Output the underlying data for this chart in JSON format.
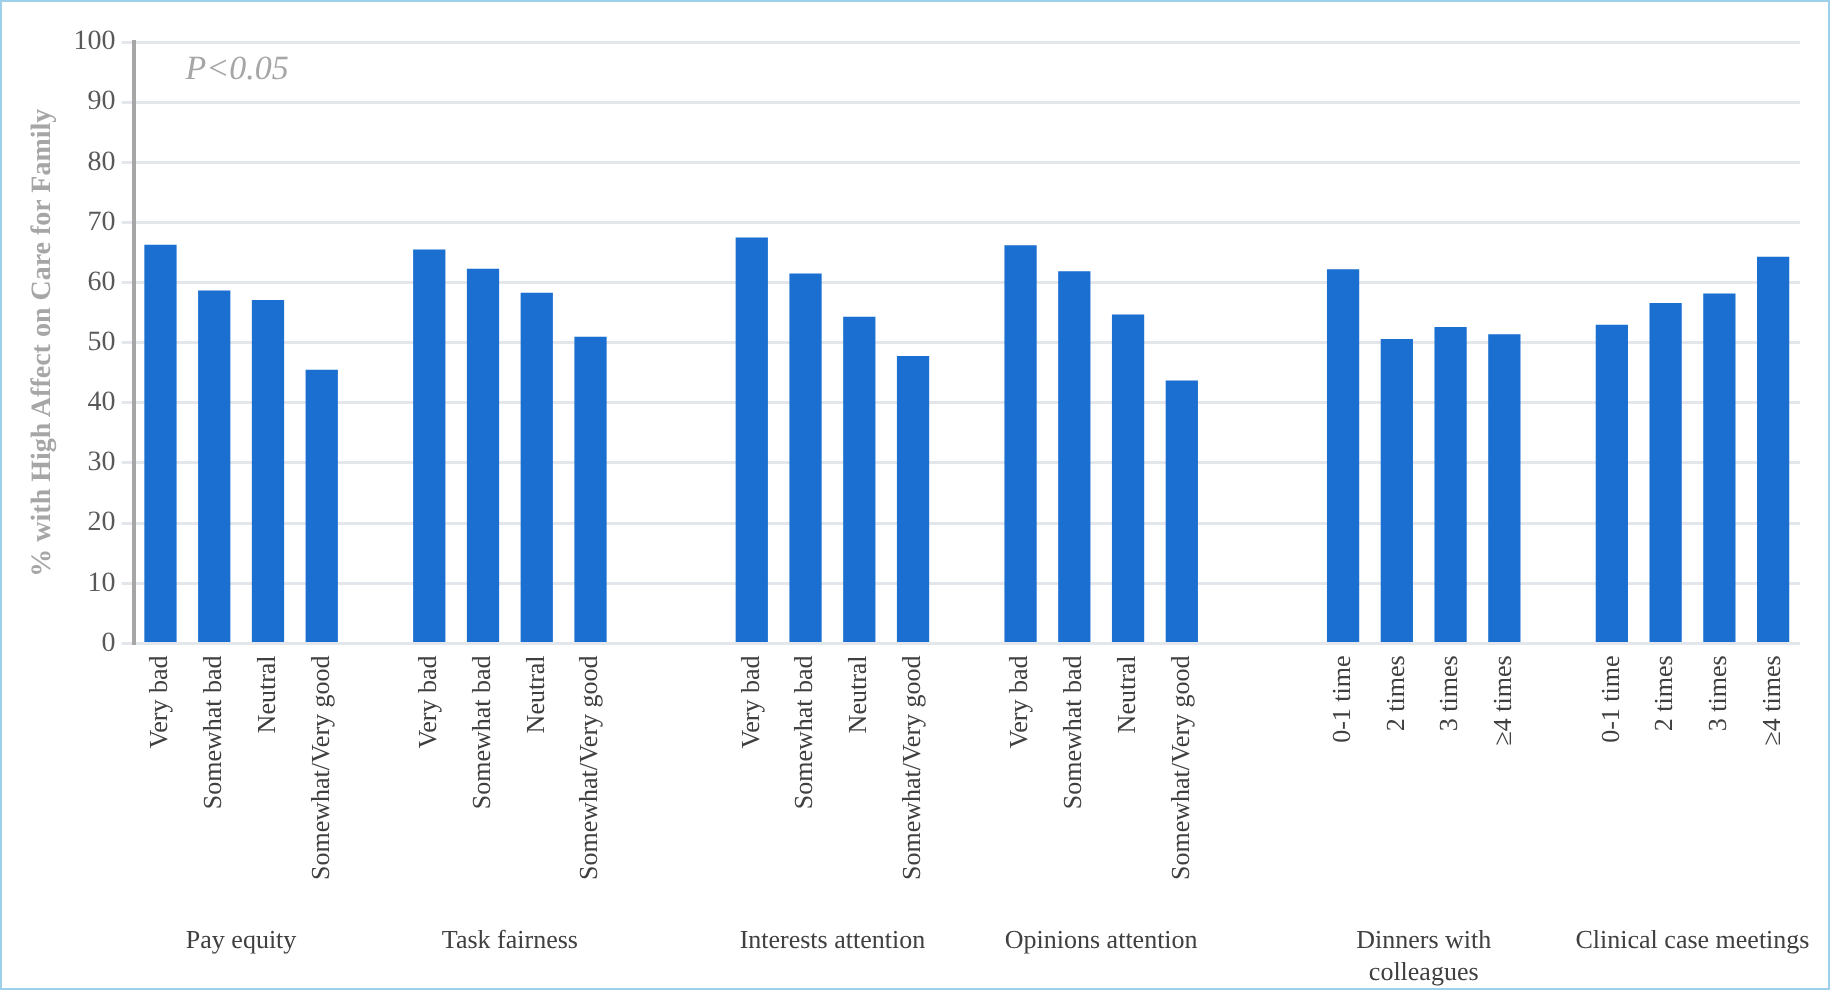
{
  "chart_data": {
    "type": "bar",
    "ylabel": "% with High Affect on Care for Family",
    "categories": [
      "Very bad",
      "Somewhat bad",
      "Neutral",
      "Somewhat/Very good",
      null,
      "Very bad",
      "Somewhat bad",
      "Neutral",
      "Somewhat/Very good",
      null,
      null,
      "Very bad",
      "Somewhat bad",
      "Neutral",
      "Somewhat/Very good",
      null,
      "Very bad",
      "Somewhat bad",
      "Neutral",
      "Somewhat/Very good",
      null,
      null,
      "0-1 time",
      "2 times",
      "3 times",
      "≥4 times",
      null,
      "0-1 time",
      "2 times",
      "3 times",
      "≥4 times"
    ],
    "values": [
      66.3,
      58.7,
      57.1,
      45.5,
      null,
      65.5,
      62.3,
      58.3,
      51.0,
      null,
      null,
      67.5,
      61.5,
      54.3,
      47.8,
      null,
      66.2,
      61.9,
      54.7,
      43.7,
      null,
      null,
      62.2,
      50.6,
      52.6,
      51.4,
      null,
      53.0,
      56.6,
      58.2,
      64.3
    ],
    "color": "#1a6fd0",
    "ylim": [
      0,
      100
    ],
    "yticks": [
      0,
      10,
      20,
      30,
      40,
      50,
      60,
      70,
      80,
      90,
      100
    ],
    "grid": "y",
    "annotations": [
      "P<0.05",
      "Pay equity",
      "Task fairness",
      "Interests attention",
      "Opinions attention",
      "Dinners with colleagues",
      "Clinical case meetings"
    ]
  }
}
